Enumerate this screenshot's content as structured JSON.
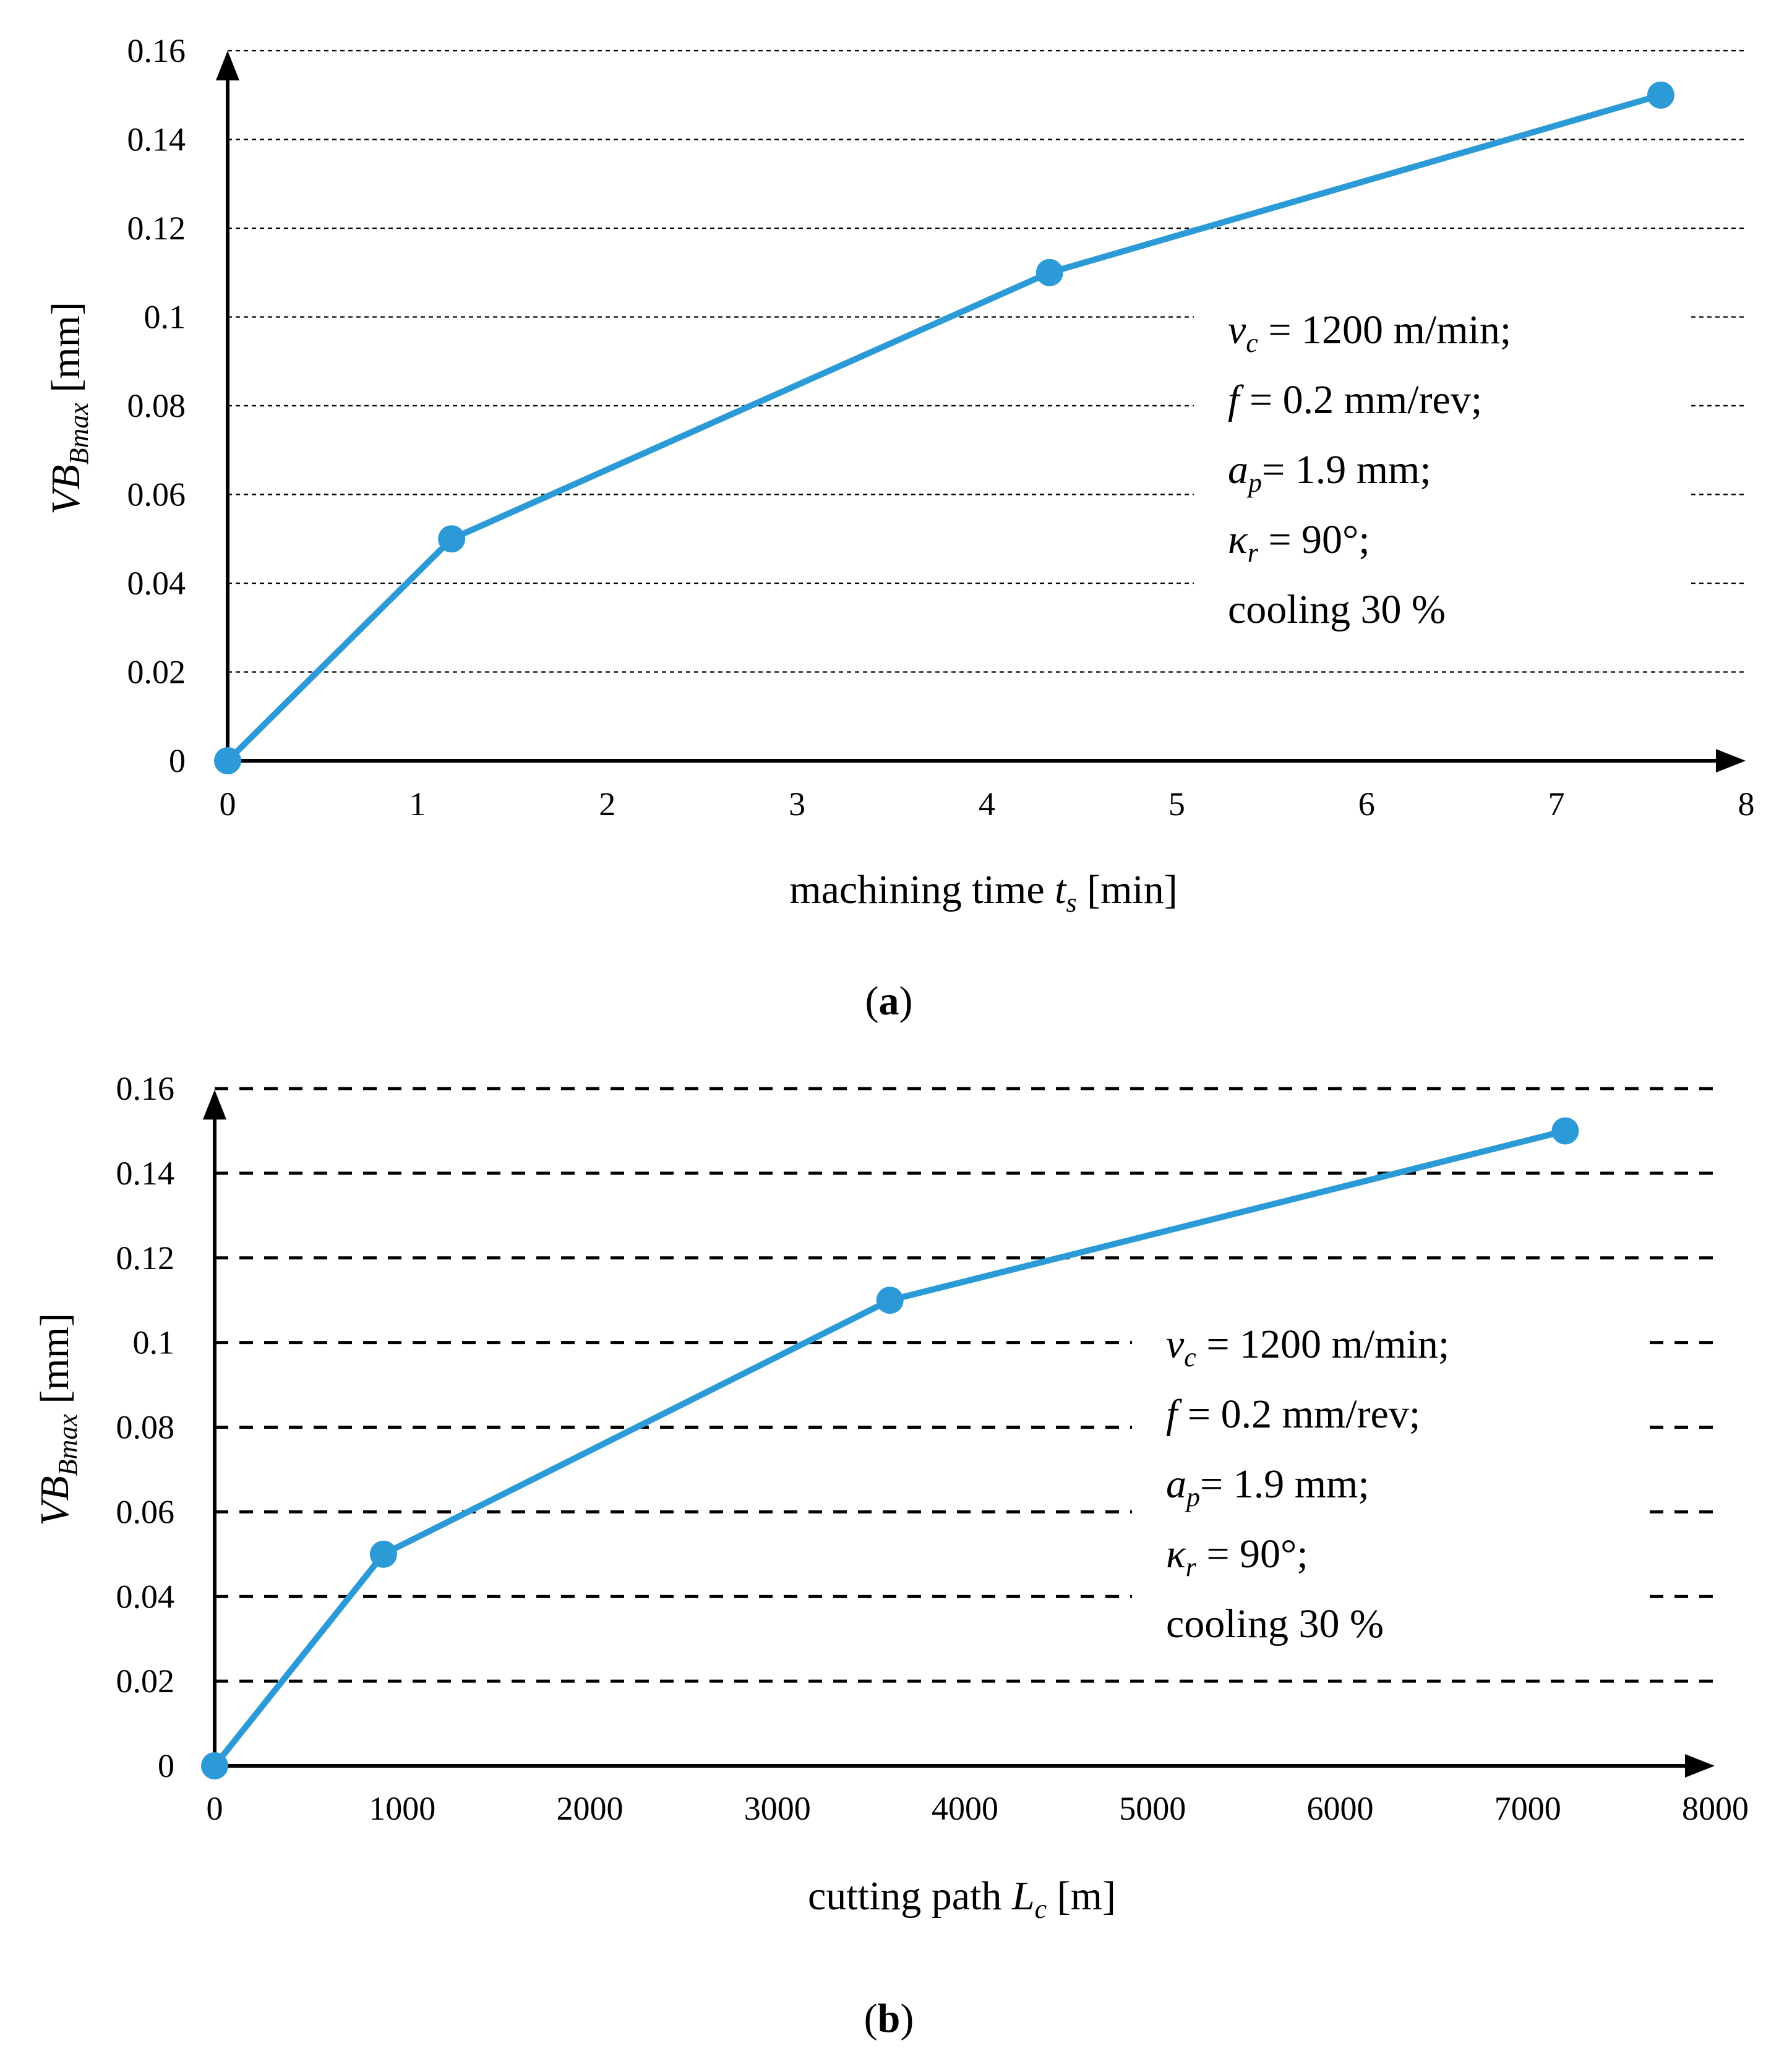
{
  "chart_data": [
    {
      "type": "line",
      "panel": "a",
      "caption_letter": "a",
      "x": [
        0,
        1.18,
        4.33,
        7.55
      ],
      "series": [
        {
          "name": "VB_Bmax",
          "values": [
            0,
            0.05,
            0.11,
            0.15
          ],
          "color": "#2b9ad6"
        }
      ],
      "xlim": [
        0,
        8
      ],
      "ylim": [
        0,
        0.16
      ],
      "xticks": [
        "0",
        "1",
        "2",
        "3",
        "4",
        "5",
        "6",
        "7",
        "8"
      ],
      "yticks": [
        "0",
        "0.02",
        "0.04",
        "0.06",
        "0.08",
        "0.1",
        "0.12",
        "0.14",
        "0.16"
      ],
      "xlabel": {
        "pre": "machining time ",
        "var": "t",
        "sub": "s",
        "post": " [min]"
      },
      "ylabel": {
        "var": "VB",
        "sub": "Bmax",
        "post": " [mm]"
      },
      "grid": "dashed horizontal",
      "annotation": {
        "vc": {
          "var": "v",
          "sub": "c",
          "text": " = 1200 m/min;"
        },
        "f": {
          "var": "f",
          "text": " = 0.2 mm/rev;"
        },
        "ap": {
          "var": "a",
          "sub": "p",
          "text": "= 1.9 mm;"
        },
        "kr": {
          "var": "κ",
          "sub": "r",
          "text": " = 90°;"
        },
        "cooling": "cooling 30 %"
      }
    },
    {
      "type": "line",
      "panel": "b",
      "caption_letter": "b",
      "x": [
        0,
        900,
        3600,
        7200
      ],
      "series": [
        {
          "name": "VB_Bmax",
          "values": [
            0,
            0.05,
            0.11,
            0.15
          ],
          "color": "#2b9ad6"
        }
      ],
      "xlim": [
        0,
        8000
      ],
      "ylim": [
        0,
        0.16
      ],
      "xticks": [
        "0",
        "1000",
        "2000",
        "3000",
        "4000",
        "5000",
        "6000",
        "7000",
        "8000"
      ],
      "yticks": [
        "0",
        "0.02",
        "0.04",
        "0.06",
        "0.08",
        "0.1",
        "0.12",
        "0.14",
        "0.16"
      ],
      "xlabel": {
        "pre": "cutting path ",
        "var": "L",
        "sub": "c",
        "post": " [m]"
      },
      "ylabel": {
        "var": "VB",
        "sub": "Bmax",
        "post": " [mm]"
      },
      "grid": "dashed horizontal",
      "annotation": {
        "vc": {
          "var": "v",
          "sub": "c",
          "text": " = 1200 m/min;"
        },
        "f": {
          "var": "f",
          "text": " = 0.2 mm/rev;"
        },
        "ap": {
          "var": "a",
          "sub": "p",
          "text": "= 1.9 mm;"
        },
        "kr": {
          "var": "κ",
          "sub": "r",
          "text": " = 90°;"
        },
        "cooling": "cooling 30 %"
      }
    }
  ]
}
